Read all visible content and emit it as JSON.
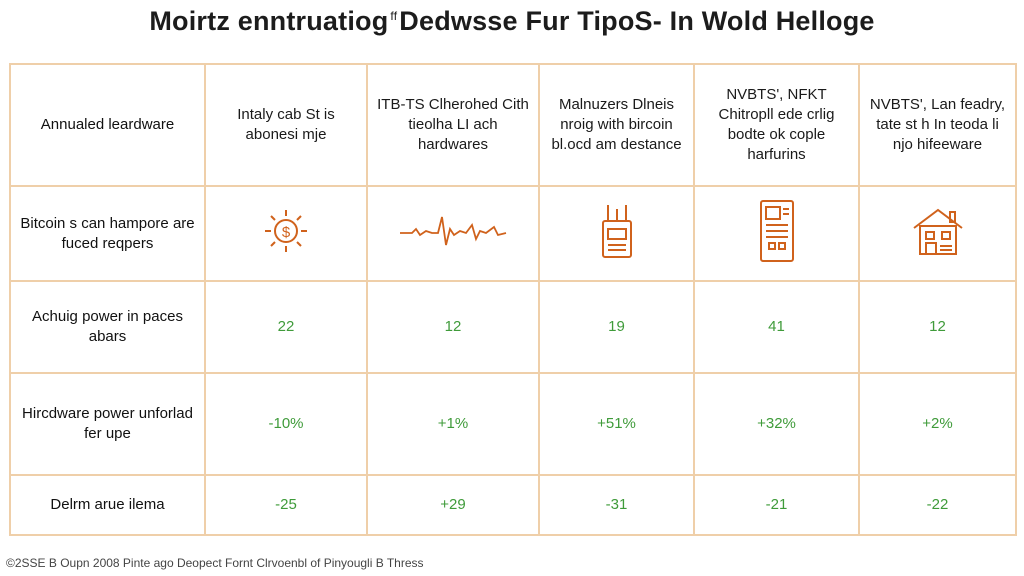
{
  "title_left": "Moirtz enntruatiog",
  "title_mark": "ff",
  "title_right": "Dedwsse Fur TipoS- In Wold Helloge",
  "chart_data": {
    "type": "table",
    "columns": [
      "",
      "Intaly cab St is abonesi mje",
      "ITB-TS Clherohed Cith tieolha LI ach hardwares",
      "Malnuzers Dlneis nroig with bircoin bl.ocd am destance",
      "NVBTS', NFKT Chitropll ede crlig bodte ok cople harfurins",
      "NVBTS', Lan feadry, tate st h In teoda li njo hifeeware"
    ],
    "rows": [
      {
        "label": "Annualed leardware",
        "cells": [
          "Intaly cab St is abonesi mje",
          "ITB-TS Clherohed Cith tieolha LI ach hardwares",
          "Malnuzers Dlneis nroig with bircoin bl.ocd am destance",
          "NVBTS', NFKT Chitropll ede crlig bodte ok cople harfurins",
          "NVBTS', Lan feadry, tate st h In teoda li njo hifeeware"
        ]
      },
      {
        "label": "Bitcoin s can hampore are fuced reqpers",
        "icons": [
          "dollar-sun-icon",
          "heartbeat-line-icon",
          "mining-rig-icon",
          "phone-device-icon",
          "house-icon"
        ]
      },
      {
        "label": "Achuig power in paces abars",
        "values": [
          "22",
          "12",
          "19",
          "41",
          "12"
        ]
      },
      {
        "label": "Hircdware power unforlad fer upe",
        "values": [
          "-10%",
          "+1%",
          "+51%",
          "+32%",
          "+2%"
        ]
      },
      {
        "label": "Delrm arue ilema",
        "values": [
          "-25",
          "+29",
          "-31",
          "-21",
          "-22"
        ]
      }
    ]
  },
  "colors": {
    "grid_border": "#efcfa9",
    "icon_stroke": "#d0621c",
    "value_green": "#3f9b3a"
  },
  "footer": "©2SSE B Oupn 2008 Pinte ago Deopect Fornt Clrvoenbl of Pinyougli B Thress"
}
